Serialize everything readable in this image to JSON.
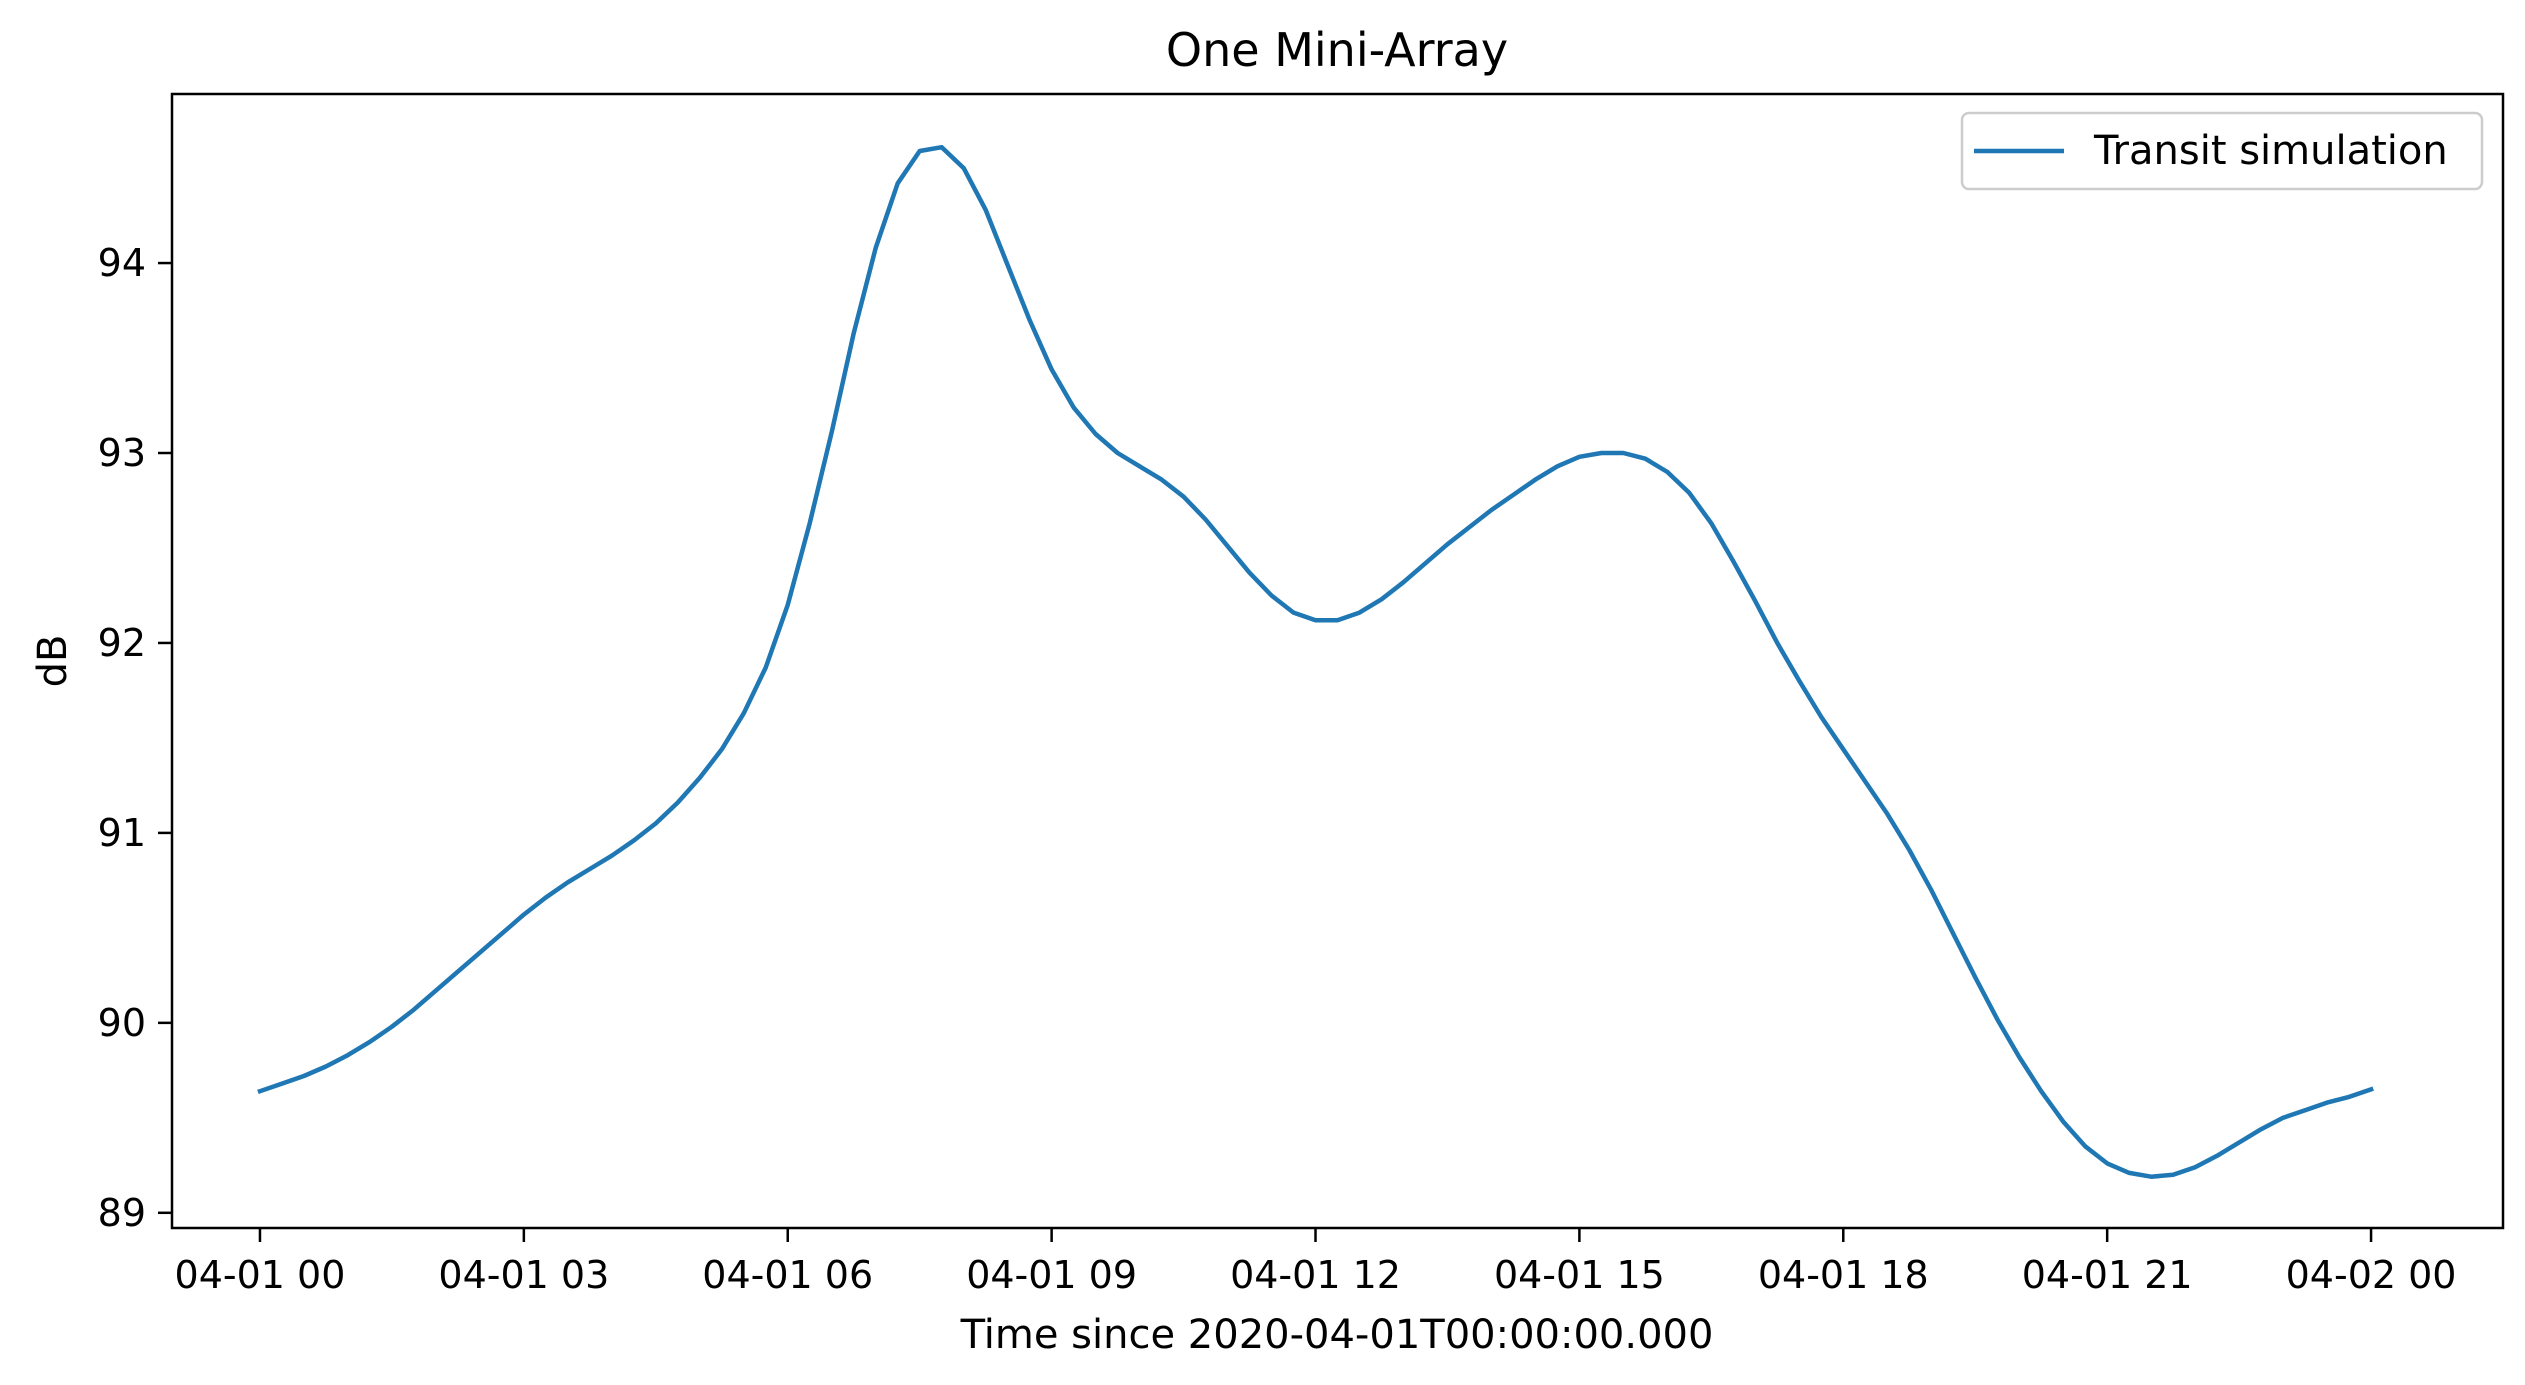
{
  "chart_data": {
    "type": "line",
    "title": "One Mini-Array",
    "xlabel": "Time since 2020-04-01T00:00:00.000",
    "ylabel": "dB",
    "x_unit": "hours",
    "xlim": [
      -1,
      25.5
    ],
    "ylim": [
      88.92,
      94.89
    ],
    "x_ticks": [
      {
        "value": 0,
        "label": "04-01 00"
      },
      {
        "value": 3,
        "label": "04-01 03"
      },
      {
        "value": 6,
        "label": "04-01 06"
      },
      {
        "value": 9,
        "label": "04-01 09"
      },
      {
        "value": 12,
        "label": "04-01 12"
      },
      {
        "value": 15,
        "label": "04-01 15"
      },
      {
        "value": 18,
        "label": "04-01 18"
      },
      {
        "value": 21,
        "label": "04-01 21"
      },
      {
        "value": 24,
        "label": "04-02 00"
      }
    ],
    "y_ticks": [
      {
        "value": 89,
        "label": "89"
      },
      {
        "value": 90,
        "label": "90"
      },
      {
        "value": 91,
        "label": "91"
      },
      {
        "value": 92,
        "label": "92"
      },
      {
        "value": 93,
        "label": "93"
      },
      {
        "value": 94,
        "label": "94"
      }
    ],
    "grid": false,
    "legend": {
      "position": "top-right"
    },
    "series": [
      {
        "name": "Transit simulation",
        "color": "#1f77b4",
        "x": [
          0,
          0.25,
          0.5,
          0.75,
          1,
          1.25,
          1.5,
          1.75,
          2,
          2.25,
          2.5,
          2.75,
          3,
          3.25,
          3.5,
          3.75,
          4,
          4.25,
          4.5,
          4.75,
          5,
          5.25,
          5.5,
          5.75,
          6,
          6.25,
          6.5,
          6.75,
          7,
          7.25,
          7.5,
          7.75,
          8,
          8.25,
          8.5,
          8.75,
          9,
          9.25,
          9.5,
          9.75,
          10,
          10.25,
          10.5,
          10.75,
          11,
          11.25,
          11.5,
          11.75,
          12,
          12.25,
          12.5,
          12.75,
          13,
          13.25,
          13.5,
          13.75,
          14,
          14.25,
          14.5,
          14.75,
          15,
          15.25,
          15.5,
          15.75,
          16,
          16.25,
          16.5,
          16.75,
          17,
          17.25,
          17.5,
          17.75,
          18,
          18.25,
          18.5,
          18.75,
          19,
          19.25,
          19.5,
          19.75,
          20,
          20.25,
          20.5,
          20.75,
          21,
          21.25,
          21.5,
          21.75,
          22,
          22.25,
          22.5,
          22.75,
          23,
          23.25,
          23.5,
          23.75,
          24
        ],
        "y": [
          89.64,
          89.68,
          89.72,
          89.77,
          89.83,
          89.9,
          89.98,
          90.07,
          90.17,
          90.27,
          90.37,
          90.47,
          90.57,
          90.66,
          90.74,
          90.81,
          90.88,
          90.96,
          91.05,
          91.16,
          91.29,
          91.44,
          91.63,
          91.87,
          92.2,
          92.63,
          93.11,
          93.63,
          94.08,
          94.42,
          94.59,
          94.61,
          94.5,
          94.28,
          93.99,
          93.7,
          93.44,
          93.24,
          93.1,
          93.0,
          92.93,
          92.86,
          92.77,
          92.65,
          92.51,
          92.37,
          92.25,
          92.16,
          92.12,
          92.12,
          92.16,
          92.23,
          92.32,
          92.42,
          92.52,
          92.61,
          92.7,
          92.78,
          92.86,
          92.93,
          92.98,
          93.0,
          93.0,
          92.97,
          92.9,
          92.79,
          92.63,
          92.43,
          92.22,
          92.0,
          91.8,
          91.61,
          91.44,
          91.27,
          91.1,
          90.91,
          90.7,
          90.47,
          90.24,
          90.02,
          89.82,
          89.64,
          89.48,
          89.35,
          89.26,
          89.21,
          89.19,
          89.2,
          89.24,
          89.3,
          89.37,
          89.44,
          89.5,
          89.54,
          89.58,
          89.61,
          89.65
        ]
      }
    ]
  }
}
